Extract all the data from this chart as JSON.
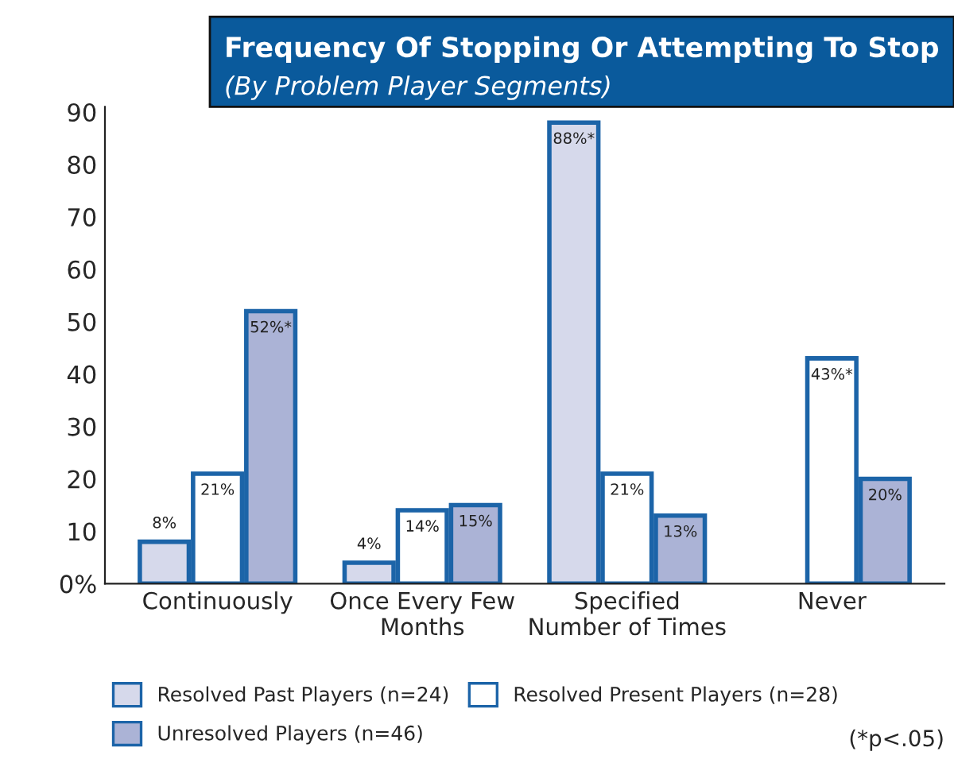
{
  "chart_data": {
    "type": "bar",
    "title": "Frequency Of Stopping Or Attempting To Stop",
    "subtitle": "(By Problem Player Segments)",
    "categories": [
      "Continuously",
      "Once Every Few\nMonths",
      "Specified\nNumber of Times",
      "Never"
    ],
    "series": [
      {
        "name": "Resolved Past Players (n=24)",
        "color": "#d6d9eb",
        "values": [
          8,
          4,
          88,
          null
        ],
        "value_labels": [
          "8%",
          "4%",
          "88%*",
          null
        ]
      },
      {
        "name": "Resolved Present Players (n=28)",
        "color": "#ffffff",
        "values": [
          21,
          14,
          21,
          43
        ],
        "value_labels": [
          "21%",
          "14%",
          "21%",
          "43%*"
        ]
      },
      {
        "name": "Unresolved Players (n=46)",
        "color": "#abb3d6",
        "values": [
          52,
          15,
          13,
          20
        ],
        "value_labels": [
          "52%*",
          "15%",
          "13%",
          "20%"
        ]
      }
    ],
    "ylim": [
      0,
      91
    ],
    "yticks": [
      {
        "value": 0,
        "label": "0%"
      },
      10,
      20,
      30,
      40,
      50,
      60,
      70,
      80,
      90
    ],
    "legend": "bottom",
    "annotations": [
      "(*p<.05)"
    ]
  }
}
